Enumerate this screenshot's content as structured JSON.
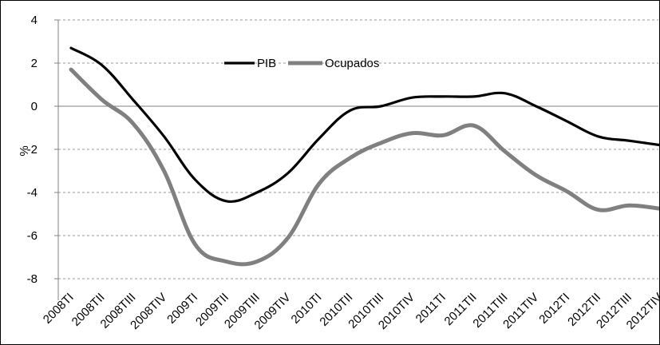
{
  "chart_data": {
    "type": "line",
    "title": "",
    "xlabel": "",
    "ylabel": "%",
    "ylim": [
      -9,
      4
    ],
    "yticks": [
      4,
      2,
      0,
      -2,
      -4,
      -6,
      -8
    ],
    "grid": "horizontal-dashed",
    "legend_position": "top-center",
    "categories": [
      "2008TI",
      "2008TII",
      "2008TIII",
      "2008TIV",
      "2009TI",
      "2009TII",
      "2009TIII",
      "2009TIV",
      "2010TI",
      "2010TII",
      "2010TIII",
      "2010TIV",
      "2011TI",
      "2011TII",
      "2011TIII",
      "2011TIV",
      "2012TI",
      "2012TII",
      "2012TIII",
      "2012TIV"
    ],
    "series": [
      {
        "name": "PIB",
        "color": "#000000",
        "values": [
          2.7,
          1.9,
          0.3,
          -1.4,
          -3.4,
          -4.4,
          -4.0,
          -3.1,
          -1.5,
          -0.2,
          0.0,
          0.4,
          0.45,
          0.45,
          0.6,
          0.0,
          -0.7,
          -1.4,
          -1.6,
          -1.8
        ]
      },
      {
        "name": "Ocupados",
        "color": "#808080",
        "values": [
          1.7,
          0.3,
          -0.8,
          -3.0,
          -6.4,
          -7.2,
          -7.2,
          -6.1,
          -3.6,
          -2.4,
          -1.7,
          -1.25,
          -1.35,
          -0.9,
          -2.1,
          -3.2,
          -3.95,
          -4.8,
          -4.6,
          -4.75
        ]
      }
    ]
  }
}
